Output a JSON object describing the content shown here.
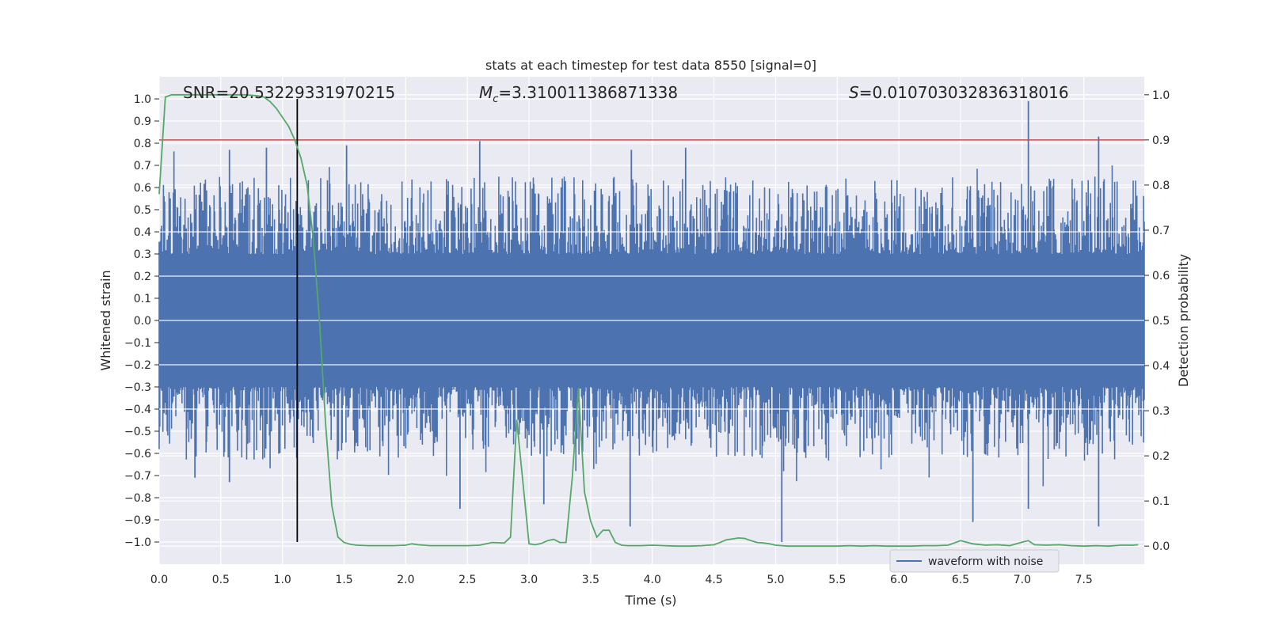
{
  "chart_data": {
    "type": "line",
    "title": "stats at each timestep for test data 8550 [signal=0]",
    "xlabel": "Time (s)",
    "ylabel": "Whitened strain",
    "y2label": "Detection probability",
    "xlim": [
      0.0,
      7.99
    ],
    "ylim": [
      -1.1,
      1.1
    ],
    "y2lim": [
      -0.04,
      1.04
    ],
    "xticks": [
      "0.0",
      "0.5",
      "1.0",
      "1.5",
      "2.0",
      "2.5",
      "3.0",
      "3.5",
      "4.0",
      "4.5",
      "5.0",
      "5.5",
      "6.0",
      "6.5",
      "7.0",
      "7.5"
    ],
    "xtick_values": [
      0,
      0.5,
      1,
      1.5,
      2,
      2.5,
      3,
      3.5,
      4,
      4.5,
      5,
      5.5,
      6,
      6.5,
      7,
      7.5
    ],
    "yticks": [
      "1.0",
      "0.9",
      "0.8",
      "0.7",
      "0.6",
      "0.5",
      "0.4",
      "0.3",
      "0.2",
      "0.1",
      "0.0",
      "−0.1",
      "−0.2",
      "−0.3",
      "−0.4",
      "−0.5",
      "−0.6",
      "−0.7",
      "−0.8",
      "−0.9",
      "−1.0"
    ],
    "ytick_values": [
      1.0,
      0.9,
      0.8,
      0.7,
      0.6,
      0.5,
      0.4,
      0.3,
      0.2,
      0.1,
      0.0,
      -0.1,
      -0.2,
      -0.3,
      -0.4,
      -0.5,
      -0.6,
      -0.7,
      -0.8,
      -0.9,
      -1.0
    ],
    "y2ticks": [
      "1.0",
      "0.9",
      "0.8",
      "0.7",
      "0.6",
      "0.5",
      "0.4",
      "0.3",
      "0.2",
      "0.1",
      "0.0"
    ],
    "y2tick_values": [
      1.0,
      0.9,
      0.8,
      0.7,
      0.6,
      0.5,
      0.4,
      0.3,
      0.2,
      0.1,
      0.0
    ],
    "annotations": {
      "snr": "SNR=20.53229331970215",
      "mc": "=3.310011386871338",
      "mc_symbol": "M",
      "mc_sub": "c",
      "s": "=0.010703032836318016",
      "s_symbol": "S"
    },
    "threshold": {
      "axis": "y2",
      "value": 0.9,
      "color": "#c44e52"
    },
    "marker_time": 1.12,
    "grid": true,
    "legend_position": "lower right",
    "series": [
      {
        "name": "waveform with noise",
        "axis": "y",
        "color": "#4c72b0",
        "kind": "noise",
        "sample_rate_hz": 2048,
        "duration_s": 8,
        "dense_band": [
          -0.2,
          0.2
        ],
        "peak_max": 0.99,
        "peak_min": -1.0,
        "spikes": [
          {
            "t": 0.57,
            "v": 0.77
          },
          {
            "t": 0.87,
            "v": 0.78
          },
          {
            "t": 1.52,
            "v": 0.79
          },
          {
            "t": 2.6,
            "v": 0.81
          },
          {
            "t": 3.83,
            "v": 0.77
          },
          {
            "t": 4.27,
            "v": 0.78
          },
          {
            "t": 7.05,
            "v": 0.99
          },
          {
            "t": 7.62,
            "v": 0.83
          },
          {
            "t": 7.05,
            "v": -0.85
          },
          {
            "t": 5.05,
            "v": -1.0
          },
          {
            "t": 3.82,
            "v": -0.93
          },
          {
            "t": 6.6,
            "v": -0.91
          },
          {
            "t": 7.62,
            "v": -0.93
          },
          {
            "t": 2.44,
            "v": -0.85
          },
          {
            "t": 3.12,
            "v": -0.83
          },
          {
            "t": 0.29,
            "v": -0.71
          },
          {
            "t": 0.57,
            "v": -0.73
          }
        ]
      },
      {
        "name": "",
        "axis": "y2",
        "color": "#55a868",
        "kind": "line",
        "x": [
          0.0,
          0.05,
          0.1,
          0.2,
          0.3,
          0.4,
          0.5,
          0.6,
          0.7,
          0.8,
          0.85,
          0.9,
          0.95,
          1.0,
          1.05,
          1.1,
          1.15,
          1.2,
          1.25,
          1.3,
          1.35,
          1.4,
          1.45,
          1.5,
          1.55,
          1.6,
          1.7,
          1.8,
          1.9,
          2.0,
          2.05,
          2.1,
          2.2,
          2.3,
          2.4,
          2.5,
          2.6,
          2.7,
          2.8,
          2.85,
          2.9,
          3.0,
          3.05,
          3.1,
          3.15,
          3.2,
          3.25,
          3.3,
          3.35,
          3.4,
          3.45,
          3.5,
          3.55,
          3.6,
          3.65,
          3.7,
          3.75,
          3.8,
          3.9,
          4.0,
          4.1,
          4.2,
          4.3,
          4.4,
          4.5,
          4.55,
          4.6,
          4.7,
          4.75,
          4.8,
          4.85,
          4.9,
          4.95,
          5.0,
          5.05,
          5.1,
          5.15,
          5.2,
          5.3,
          5.4,
          5.5,
          5.6,
          5.7,
          5.8,
          5.9,
          6.0,
          6.1,
          6.2,
          6.3,
          6.4,
          6.5,
          6.6,
          6.7,
          6.8,
          6.9,
          7.0,
          7.05,
          7.1,
          7.2,
          7.3,
          7.4,
          7.5,
          7.6,
          7.7,
          7.8,
          7.9,
          7.94
        ],
        "y": [
          0.78,
          0.995,
          1.0,
          1.0,
          1.0,
          1.0,
          1.0,
          1.0,
          1.0,
          0.998,
          0.995,
          0.985,
          0.97,
          0.95,
          0.93,
          0.9,
          0.86,
          0.8,
          0.68,
          0.5,
          0.27,
          0.09,
          0.02,
          0.008,
          0.004,
          0.002,
          0.001,
          0.001,
          0.001,
          0.002,
          0.005,
          0.003,
          0.001,
          0.001,
          0.001,
          0.001,
          0.002,
          0.008,
          0.007,
          0.02,
          0.28,
          0.005,
          0.003,
          0.006,
          0.012,
          0.015,
          0.008,
          0.008,
          0.15,
          0.35,
          0.12,
          0.055,
          0.02,
          0.035,
          0.035,
          0.008,
          0.002,
          0.001,
          0.001,
          0.002,
          0.001,
          0.0,
          0.0,
          0.001,
          0.003,
          0.008,
          0.014,
          0.018,
          0.017,
          0.012,
          0.008,
          0.007,
          0.005,
          0.002,
          0.001,
          0.0,
          0.0,
          0.0,
          0.0,
          0.0,
          0.0,
          0.001,
          0.0,
          0.001,
          0.0,
          0.0,
          0.0,
          0.001,
          0.001,
          0.002,
          0.012,
          0.005,
          0.002,
          0.003,
          0.001,
          0.009,
          0.012,
          0.003,
          0.002,
          0.003,
          0.001,
          0.0,
          0.001,
          0.0,
          0.002,
          0.002,
          0.003
        ]
      }
    ]
  }
}
